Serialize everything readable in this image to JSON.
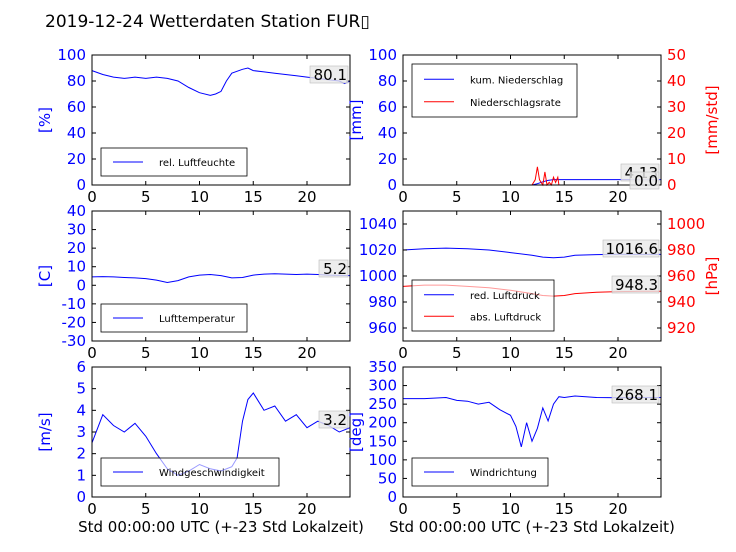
{
  "title": "2019-12-24 Wetterdaten Station FUR▯",
  "colors": {
    "blue": "#0000ff",
    "red": "#ff0000",
    "gray": "#555555"
  },
  "chart_data": [
    {
      "type": "line",
      "ylabel": "[%]",
      "xlim": [
        0,
        24
      ],
      "ylim": [
        0,
        100
      ],
      "yticks": [
        0,
        20,
        40,
        60,
        80,
        100
      ],
      "xticks": [
        0,
        5,
        10,
        15,
        20
      ],
      "annotation": "80.1",
      "legend": "bottom-left",
      "series": [
        {
          "name": "rel. Luftfeuchte",
          "color": "#0000ff",
          "x": [
            0,
            1,
            2,
            3,
            4,
            5,
            6,
            7,
            8,
            9,
            10,
            11,
            11.5,
            12,
            12.5,
            13,
            14,
            14.5,
            15,
            16,
            17,
            18,
            19,
            20,
            21,
            22,
            23,
            23.5,
            24
          ],
          "y": [
            88,
            85,
            83,
            82,
            83,
            82,
            83,
            82,
            80,
            75,
            71,
            69,
            70,
            72,
            80,
            86,
            89,
            90,
            88,
            87,
            86,
            85,
            84,
            83,
            82,
            81,
            80,
            78,
            80
          ]
        }
      ]
    },
    {
      "type": "line",
      "ylabel": "[mm]",
      "ylabel_right": "[mm/std]",
      "xlim": [
        0,
        24
      ],
      "ylim": [
        0,
        100
      ],
      "ylim_right": [
        0,
        50
      ],
      "yticks": [
        0,
        20,
        40,
        60,
        80,
        100
      ],
      "yticks_right": [
        0,
        10,
        20,
        30,
        40,
        50
      ],
      "xticks": [
        0,
        5,
        10,
        15,
        20
      ],
      "annotations": [
        "4.13",
        "0.0"
      ],
      "legend": "top-left",
      "series": [
        {
          "name": "kum. Niederschlag",
          "color": "#0000ff",
          "axis": "left",
          "x": [
            0,
            12,
            12.5,
            13,
            13.5,
            14,
            24
          ],
          "y": [
            0,
            0,
            1,
            2.5,
            3.5,
            4.13,
            4.13
          ]
        },
        {
          "name": "Niederschlagsrate",
          "color": "#ff0000",
          "axis": "right",
          "x": [
            0,
            12,
            12.3,
            12.5,
            12.7,
            13,
            13.2,
            13.4,
            13.6,
            13.8,
            14,
            14.2,
            14.4,
            14.5,
            15,
            24
          ],
          "y": [
            0,
            0,
            2,
            7,
            2,
            0,
            5,
            0,
            1,
            0,
            3,
            1,
            3,
            0,
            0,
            0
          ]
        }
      ]
    },
    {
      "type": "line",
      "ylabel": "[C]",
      "xlim": [
        0,
        24
      ],
      "ylim": [
        -30,
        40
      ],
      "yticks": [
        -30,
        -20,
        -10,
        0,
        10,
        20,
        30,
        40
      ],
      "xticks": [
        0,
        5,
        10,
        15,
        20
      ],
      "annotation": "5.2",
      "legend": "bottom-left",
      "series": [
        {
          "name": "Lufttemperatur",
          "color": "#0000ff",
          "x": [
            0,
            1,
            2,
            3,
            4,
            5,
            6,
            7,
            8,
            9,
            10,
            11,
            12,
            13,
            14,
            15,
            16,
            17,
            18,
            19,
            20,
            21,
            22,
            23,
            24
          ],
          "y": [
            4.5,
            4.7,
            4.5,
            4.2,
            4.0,
            3.6,
            2.8,
            1.5,
            2.5,
            4.5,
            5.5,
            5.8,
            5.2,
            4.0,
            4.2,
            5.5,
            6.0,
            6.2,
            6.0,
            5.8,
            6.0,
            5.8,
            5.5,
            5.3,
            5.2
          ]
        }
      ]
    },
    {
      "type": "line",
      "ylabel_right": "[hPa]",
      "xlim": [
        0,
        24
      ],
      "ylim": [
        950,
        1050
      ],
      "ylim_right": [
        910,
        1010
      ],
      "yticks": [
        960,
        980,
        1000,
        1020,
        1040
      ],
      "yticks_right": [
        920,
        940,
        960,
        980,
        1000
      ],
      "xticks": [
        0,
        5,
        10,
        15,
        20
      ],
      "annotations": [
        "1016.6",
        "948.3"
      ],
      "legend": "bottom-left",
      "series": [
        {
          "name": "red. Luftdruck",
          "color": "#0000ff",
          "axis": "left",
          "x": [
            0,
            2,
            4,
            6,
            8,
            10,
            12,
            13,
            14,
            15,
            16,
            18,
            20,
            22,
            24
          ],
          "y": [
            1020,
            1021,
            1021.5,
            1021,
            1020,
            1018,
            1016,
            1014.5,
            1014,
            1014.5,
            1016,
            1016.5,
            1016.7,
            1016.6,
            1016.6
          ]
        },
        {
          "name": "abs. Luftdruck",
          "color": "#ff0000",
          "axis": "right",
          "x": [
            0,
            2,
            4,
            6,
            8,
            10,
            12,
            13,
            14,
            15,
            16,
            18,
            20,
            22,
            24
          ],
          "y": [
            952,
            953,
            953,
            952,
            951,
            949,
            946.5,
            945,
            944.5,
            945,
            946.5,
            947.5,
            948,
            948.2,
            948.3
          ]
        }
      ]
    },
    {
      "type": "line",
      "ylabel": "[m/s]",
      "xlim": [
        0,
        24
      ],
      "ylim": [
        0,
        6
      ],
      "yticks": [
        0,
        1,
        2,
        3,
        4,
        5,
        6
      ],
      "xticks": [
        0,
        5,
        10,
        15,
        20
      ],
      "xlabel": "Std 00:00:00 UTC (+-23 Std Lokalzeit)",
      "annotation": "3.2",
      "legend": "bottom-left",
      "series": [
        {
          "name": "Windgeschwindigkeit",
          "color": "#0000ff",
          "x": [
            0,
            1,
            2,
            3,
            4,
            5,
            6,
            7,
            8,
            9,
            10,
            11,
            12,
            13,
            13.5,
            14,
            14.5,
            15,
            16,
            17,
            18,
            19,
            20,
            21,
            22,
            23,
            24
          ],
          "y": [
            2.5,
            3.8,
            3.3,
            3.0,
            3.4,
            2.8,
            2.0,
            1.3,
            1.0,
            1.2,
            1.5,
            1.3,
            1.2,
            1.4,
            1.8,
            3.5,
            4.5,
            4.8,
            4.0,
            4.2,
            3.5,
            3.8,
            3.2,
            3.5,
            3.3,
            3.0,
            3.2
          ]
        }
      ]
    },
    {
      "type": "line",
      "ylabel": "[deg]",
      "xlim": [
        0,
        24
      ],
      "ylim": [
        0,
        350
      ],
      "yticks": [
        0,
        50,
        100,
        150,
        200,
        250,
        300,
        350
      ],
      "xticks": [
        0,
        5,
        10,
        15,
        20
      ],
      "xlabel": "Std 00:00:00 UTC (+-23 Std Lokalzeit)",
      "annotation": "268.1",
      "legend": "bottom-left",
      "series": [
        {
          "name": "Windrichtung",
          "color": "#0000ff",
          "x": [
            0,
            2,
            4,
            5,
            6,
            7,
            8,
            9,
            10,
            10.5,
            11,
            11.5,
            12,
            12.5,
            13,
            13.5,
            14,
            14.5,
            15,
            16,
            18,
            20,
            22,
            24
          ],
          "y": [
            265,
            265,
            268,
            260,
            258,
            250,
            255,
            235,
            220,
            190,
            135,
            200,
            150,
            185,
            240,
            205,
            250,
            270,
            268,
            272,
            268,
            267,
            268,
            268
          ]
        }
      ]
    }
  ]
}
